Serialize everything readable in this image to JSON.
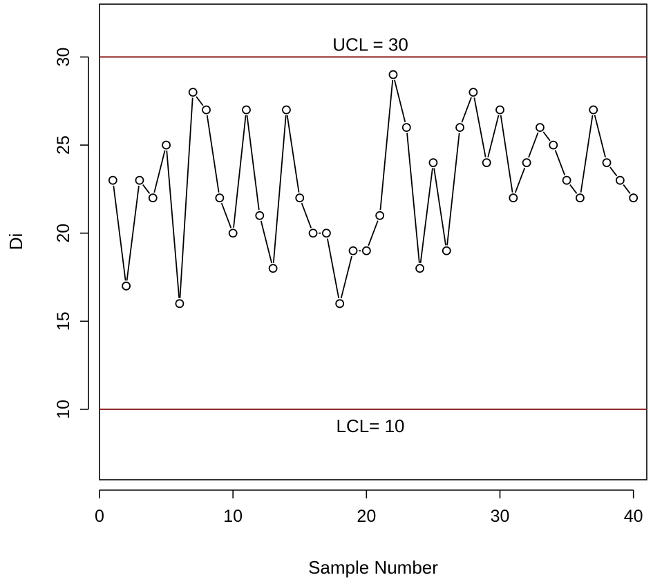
{
  "chart_data": {
    "type": "line",
    "xlabel": "Sample Number",
    "ylabel": "Di",
    "xlim": [
      0,
      41
    ],
    "ylim": [
      6,
      33
    ],
    "x_ticks": [
      0,
      10,
      20,
      30,
      40
    ],
    "y_ticks": [
      10,
      15,
      20,
      25,
      30
    ],
    "grid": false,
    "legend": "none",
    "line_style": "both (points joined by line segments)",
    "control_limits": [
      {
        "value": 30,
        "label": "UCL = 30",
        "color": "#8b1a1a"
      },
      {
        "value": 10,
        "label": "LCL= 10",
        "color": "#8b1a1a"
      }
    ],
    "x": [
      1,
      2,
      3,
      4,
      5,
      6,
      7,
      8,
      9,
      10,
      11,
      12,
      13,
      14,
      15,
      16,
      17,
      18,
      19,
      20,
      21,
      22,
      23,
      24,
      25,
      26,
      27,
      28,
      29,
      30,
      31,
      32,
      33,
      34,
      35,
      36,
      37,
      38,
      39,
      40
    ],
    "y": [
      23,
      17,
      23,
      22,
      25,
      16,
      28,
      27,
      22,
      20,
      27,
      21,
      18,
      27,
      22,
      20,
      20,
      16,
      19,
      19,
      21,
      29,
      26,
      18,
      24,
      19,
      26,
      28,
      24,
      27,
      22,
      24,
      26,
      25,
      23,
      22,
      27,
      24,
      23,
      22
    ]
  }
}
